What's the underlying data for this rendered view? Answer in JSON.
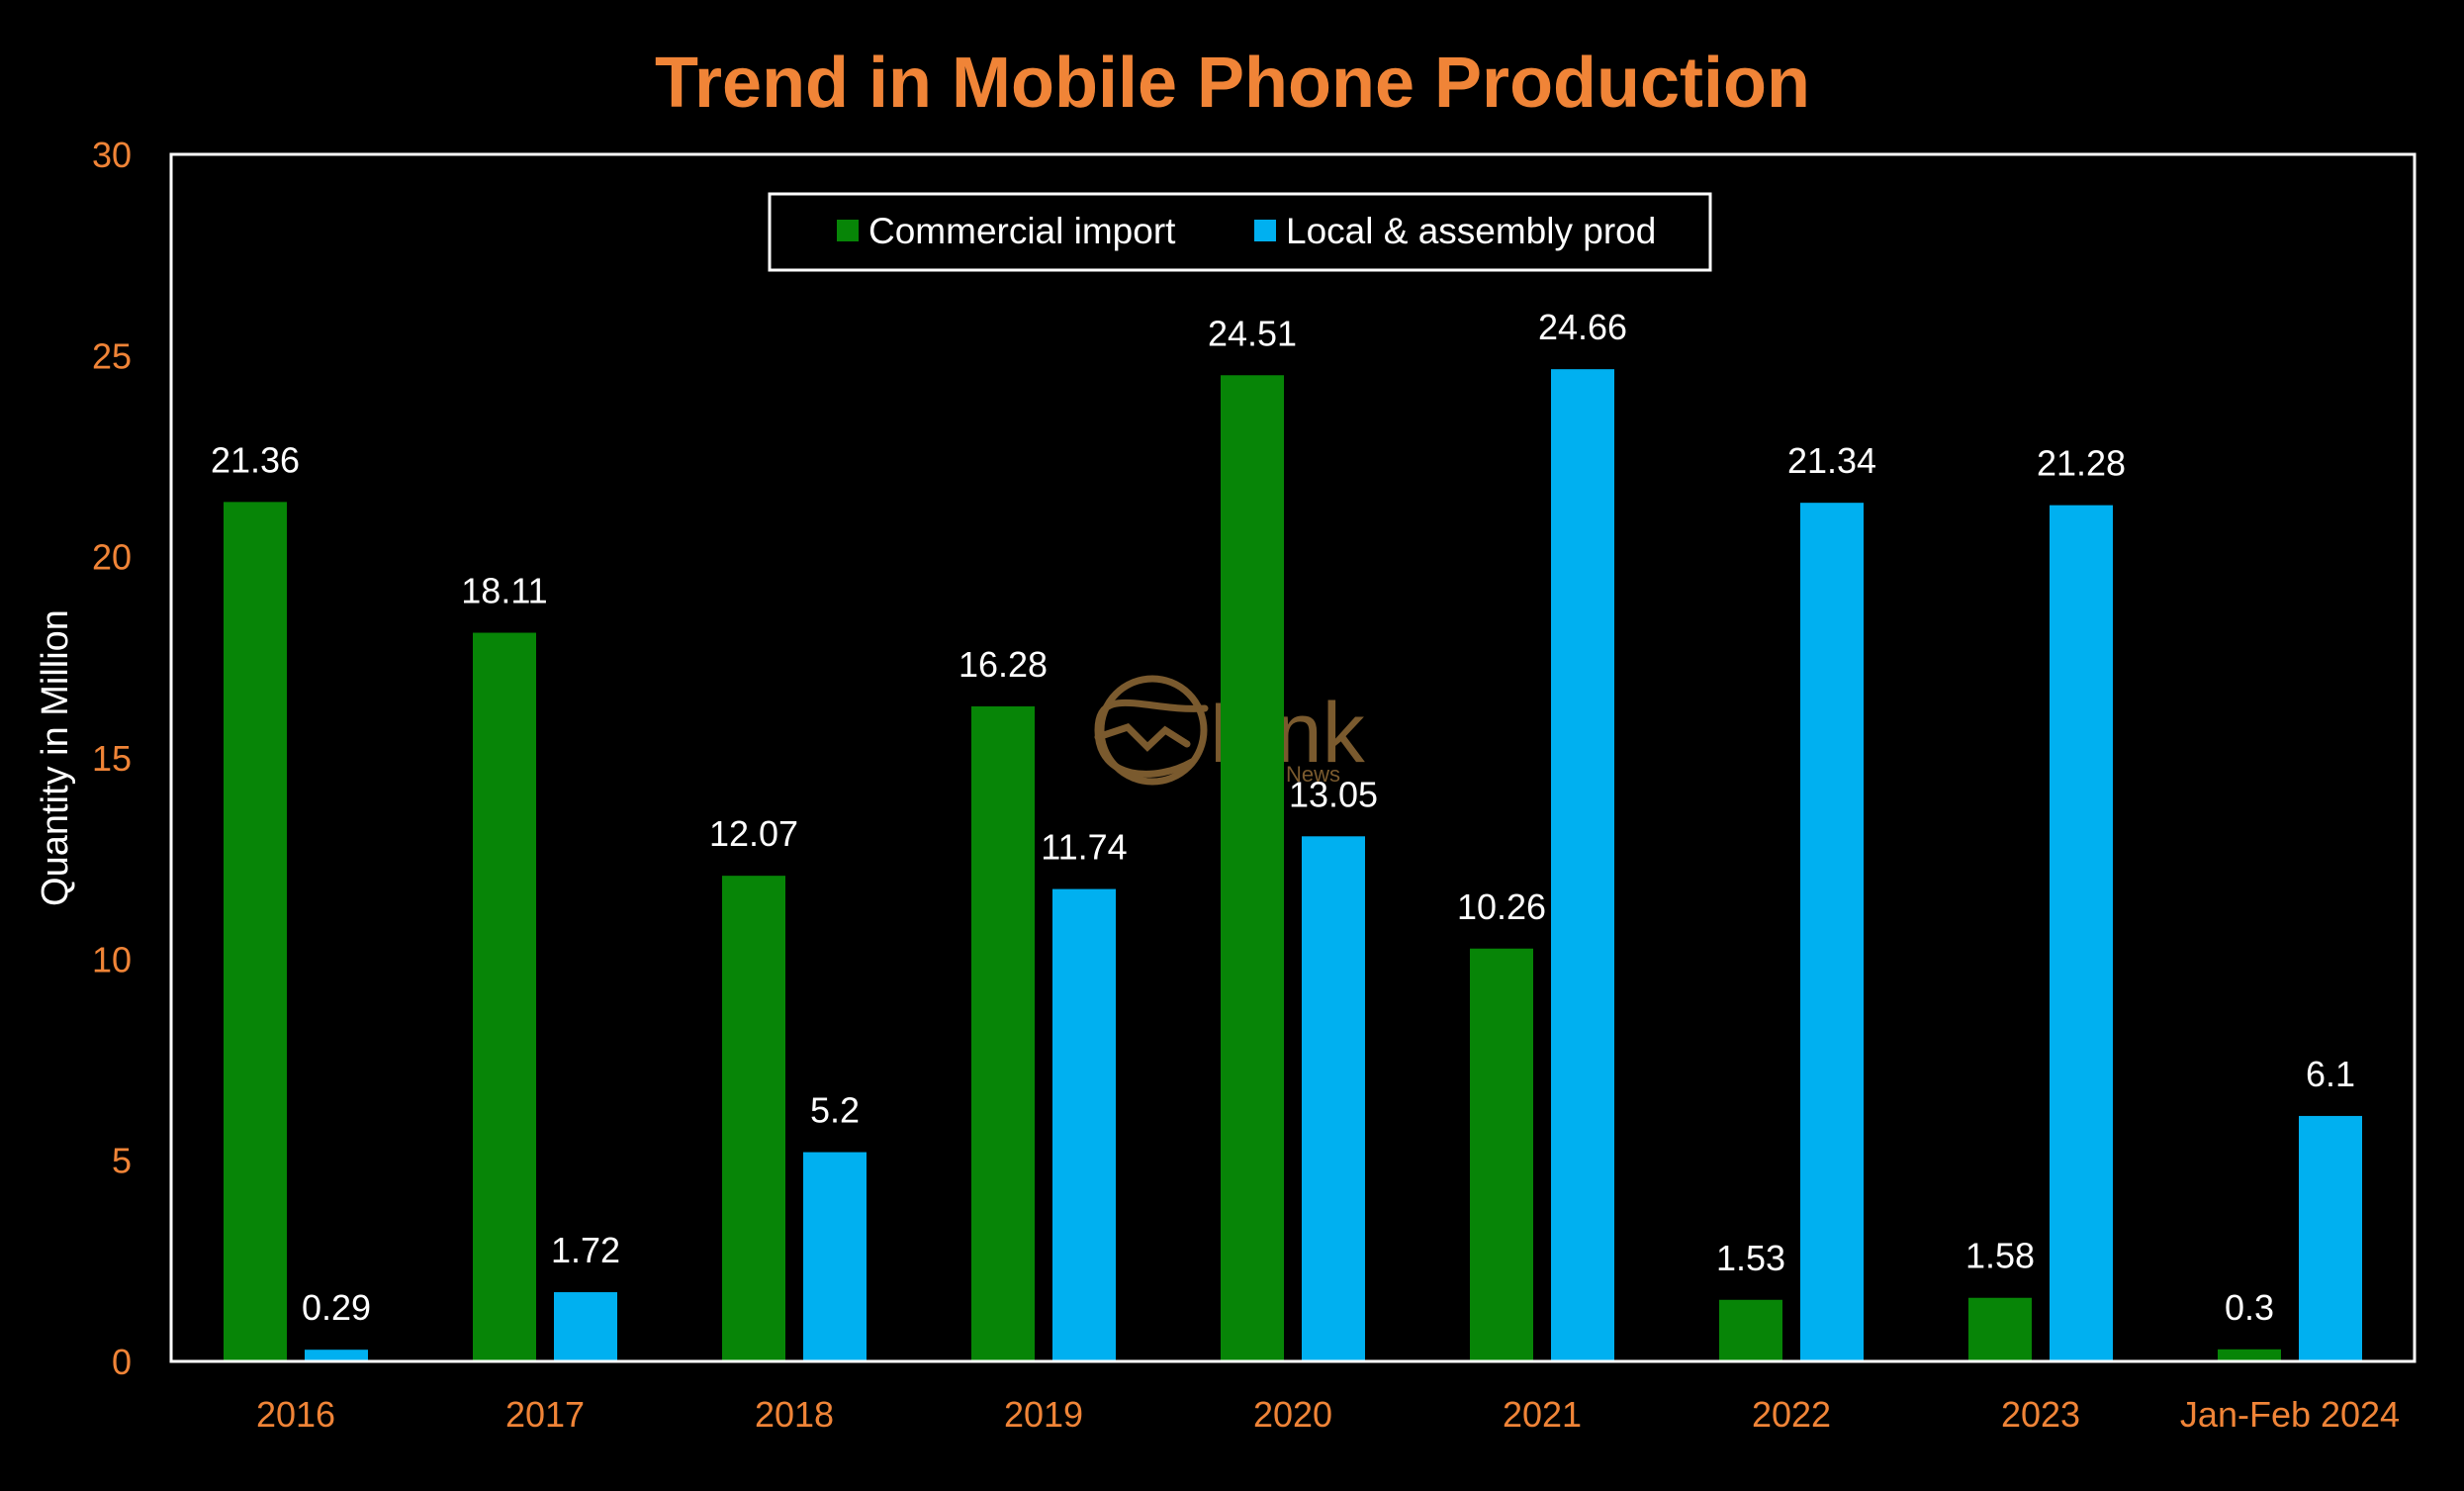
{
  "chart_data": {
    "type": "bar",
    "title": "Trend in Mobile Phone Production",
    "xlabel": "",
    "ylabel": "Quantity in Million",
    "ylim": [
      0,
      30
    ],
    "yticks": [
      "0",
      "5",
      "10",
      "15",
      "20",
      "25",
      "30"
    ],
    "categories": [
      "2016",
      "2017",
      "2018",
      "2019",
      "2020",
      "2021",
      "2022",
      "2023",
      "Jan-Feb 2024"
    ],
    "series": [
      {
        "name": "Commercial import",
        "color": "#078507",
        "values": [
          21.36,
          18.11,
          12.07,
          16.28,
          24.51,
          10.26,
          1.53,
          1.58,
          0.3
        ],
        "labels": [
          "21.36",
          "18.11",
          "12.07",
          "16.28",
          "24.51",
          "10.26",
          "1.53",
          "1.58",
          "0.3"
        ]
      },
      {
        "name": "Local & assembly prod",
        "color": "#00B0F0",
        "values": [
          0.29,
          1.72,
          5.2,
          11.74,
          13.05,
          24.66,
          21.34,
          21.28,
          6.1
        ],
        "labels": [
          "0.29",
          "1.72",
          "5.2",
          "11.74",
          "13.05",
          "24.66",
          "21.34",
          "21.28",
          "6.1"
        ]
      }
    ],
    "grid": false,
    "legend_position": "top-center",
    "colors": {
      "background": "#000000",
      "title": "#F08437",
      "tick_labels": "#F08437",
      "axis_title": "#FFFFFF",
      "data_labels": "#FFFFFF",
      "frame": "#FFFFFF"
    }
  },
  "watermark": {
    "text": "Link",
    "subtext": "News",
    "color": "#7A5A2E"
  }
}
